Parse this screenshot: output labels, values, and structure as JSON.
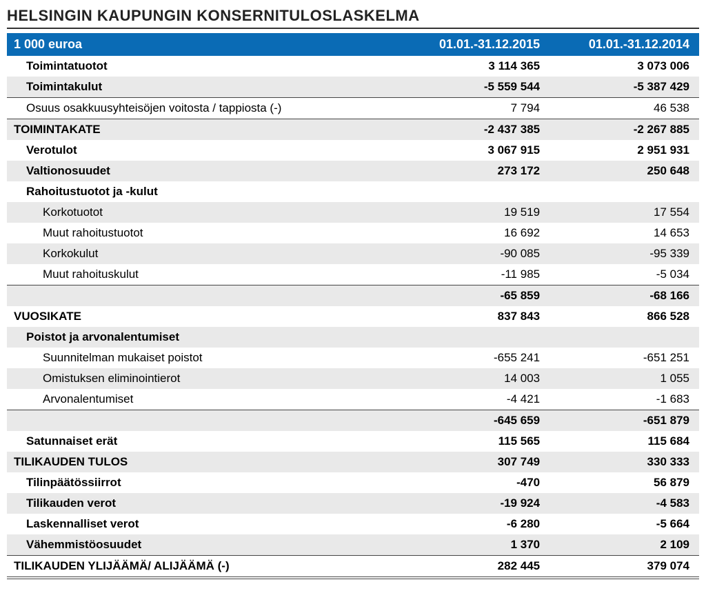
{
  "title": "HELSINGIN KAUPUNGIN KONSERNITULOSLASKELMA",
  "colors": {
    "header_bg": "#0a6bb5",
    "header_text": "#ffffff",
    "shade_bg": "#e9e9e9",
    "line": "#444444"
  },
  "header": {
    "unit": "1 000 euroa",
    "period1": "01.01.-31.12.2015",
    "period2": "01.01.-31.12.2014"
  },
  "rows": [
    {
      "label": "Toimintatuotot",
      "v1": "3 114 365",
      "v2": "3 073 006",
      "bold": true,
      "shade": false,
      "indent": 1,
      "lineTop": false
    },
    {
      "label": "Toimintakulut",
      "v1": "-5 559 544",
      "v2": "-5 387 429",
      "bold": true,
      "shade": true,
      "indent": 1,
      "lineTop": false
    },
    {
      "label": "Osuus osakkuusyhteisöjen voitosta / tappiosta (-)",
      "v1": "7 794",
      "v2": "46 538",
      "bold": false,
      "shade": false,
      "indent": 1,
      "lineTop": true
    },
    {
      "label": "TOIMINTAKATE",
      "v1": "-2 437 385",
      "v2": "-2 267 885",
      "bold": true,
      "shade": true,
      "indent": 0,
      "lineTop": true
    },
    {
      "label": "Verotulot",
      "v1": "3 067 915",
      "v2": "2 951 931",
      "bold": true,
      "shade": false,
      "indent": 1,
      "lineTop": false
    },
    {
      "label": "Valtionosuudet",
      "v1": "273 172",
      "v2": "250 648",
      "bold": true,
      "shade": true,
      "indent": 1,
      "lineTop": false
    },
    {
      "label": "Rahoitustuotot ja -kulut",
      "v1": "",
      "v2": "",
      "bold": true,
      "shade": false,
      "indent": 1,
      "lineTop": false
    },
    {
      "label": "Korkotuotot",
      "v1": "19 519",
      "v2": "17 554",
      "bold": false,
      "shade": true,
      "indent": 2,
      "lineTop": false
    },
    {
      "label": "Muut rahoitustuotot",
      "v1": "16 692",
      "v2": "14 653",
      "bold": false,
      "shade": false,
      "indent": 2,
      "lineTop": false
    },
    {
      "label": "Korkokulut",
      "v1": "-90 085",
      "v2": "-95 339",
      "bold": false,
      "shade": true,
      "indent": 2,
      "lineTop": false
    },
    {
      "label": "Muut rahoituskulut",
      "v1": "-11 985",
      "v2": "-5 034",
      "bold": false,
      "shade": false,
      "indent": 2,
      "lineTop": false
    },
    {
      "label": "",
      "v1": "-65 859",
      "v2": "-68 166",
      "bold": true,
      "shade": true,
      "indent": 0,
      "lineTop": true
    },
    {
      "label": "VUOSIKATE",
      "v1": "837 843",
      "v2": "866 528",
      "bold": true,
      "shade": false,
      "indent": 0,
      "lineTop": false
    },
    {
      "label": "Poistot ja arvonalentumiset",
      "v1": "",
      "v2": "",
      "bold": true,
      "shade": true,
      "indent": 1,
      "lineTop": false
    },
    {
      "label": "Suunnitelman mukaiset poistot",
      "v1": "-655 241",
      "v2": "-651 251",
      "bold": false,
      "shade": false,
      "indent": 2,
      "lineTop": false
    },
    {
      "label": "Omistuksen eliminointierot",
      "v1": "14 003",
      "v2": "1 055",
      "bold": false,
      "shade": true,
      "indent": 2,
      "lineTop": false
    },
    {
      "label": "Arvonalentumiset",
      "v1": "-4 421",
      "v2": "-1 683",
      "bold": false,
      "shade": false,
      "indent": 2,
      "lineTop": false
    },
    {
      "label": "",
      "v1": "-645 659",
      "v2": "-651 879",
      "bold": true,
      "shade": true,
      "indent": 0,
      "lineTop": true
    },
    {
      "label": "Satunnaiset erät",
      "v1": "115 565",
      "v2": "115 684",
      "bold": true,
      "shade": false,
      "indent": 1,
      "lineTop": false
    },
    {
      "label": "TILIKAUDEN TULOS",
      "v1": "307 749",
      "v2": "330 333",
      "bold": true,
      "shade": true,
      "indent": 0,
      "lineTop": false
    },
    {
      "label": "Tilinpäätössiirrot",
      "v1": "-470",
      "v2": "56 879",
      "bold": true,
      "shade": false,
      "indent": 1,
      "lineTop": false
    },
    {
      "label": "Tilikauden verot",
      "v1": "-19 924",
      "v2": "-4 583",
      "bold": true,
      "shade": true,
      "indent": 1,
      "lineTop": false
    },
    {
      "label": "Laskennalliset verot",
      "v1": "-6 280",
      "v2": "-5 664",
      "bold": true,
      "shade": false,
      "indent": 1,
      "lineTop": false
    },
    {
      "label": "Vähemmistöosuudet",
      "v1": "1 370",
      "v2": "2 109",
      "bold": true,
      "shade": true,
      "indent": 1,
      "lineTop": false
    },
    {
      "label": "TILIKAUDEN YLIJÄÄMÄ/ ALIJÄÄMÄ (-)",
      "v1": "282 445",
      "v2": "379 074",
      "bold": true,
      "shade": false,
      "indent": 0,
      "lineTop": true,
      "lineBottomDbl": true
    }
  ]
}
